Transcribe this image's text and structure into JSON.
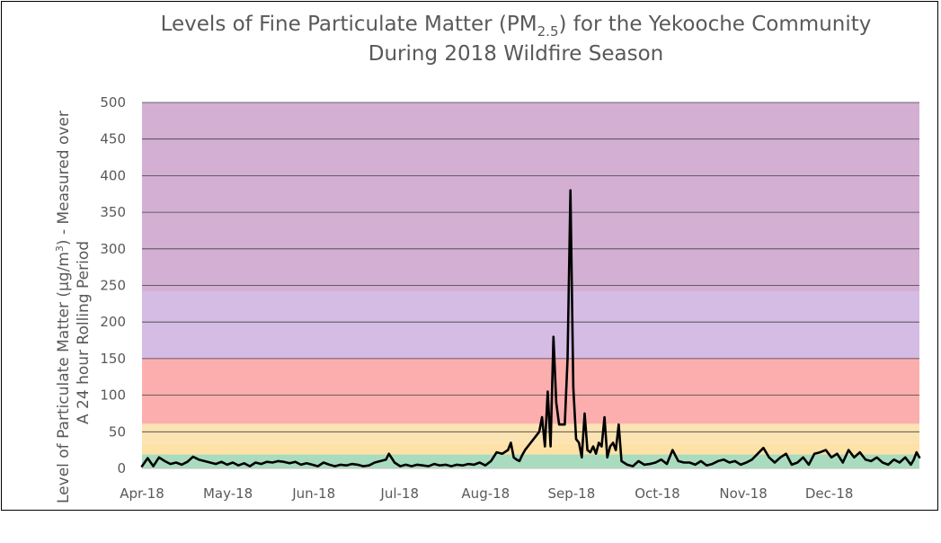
{
  "chart_data": {
    "type": "line",
    "title": {
      "line1_pre": "Levels of Fine Particulate Matter (PM",
      "line1_sub": "2.5",
      "line1_post": ") for the Yekooche Community",
      "line2": "During 2018 Wildfire Season"
    },
    "ylabel": {
      "line1_pre": "Level of Particulate Matter (µg/m",
      "line1_sup": "3",
      "line1_post": ") - Measured over",
      "line2": "A 24 hour Rolling Period"
    },
    "xlabel": "",
    "ylim": [
      0,
      500
    ],
    "yticks": [
      "0",
      "50",
      "100",
      "150",
      "200",
      "250",
      "300",
      "350",
      "400",
      "450",
      "500"
    ],
    "x_tick_labels": [
      "Apr-18",
      "May-18",
      "Jun-18",
      "Jul-18",
      "Aug-18",
      "Sep-18",
      "Oct-18",
      "Nov-18",
      "Dec-18"
    ],
    "x_range": [
      "2018-04-01",
      "2018-12-31"
    ],
    "gridlines": true,
    "legend": "none",
    "bands": [
      {
        "from": 0,
        "to": 19,
        "color": "#a9dcbf"
      },
      {
        "from": 19,
        "to": 34,
        "color": "#fde1a6"
      },
      {
        "from": 34,
        "to": 61,
        "color": "#fce3b3"
      },
      {
        "from": 61,
        "to": 150,
        "color": "#fcaeae"
      },
      {
        "from": 150,
        "to": 242,
        "color": "#d5bce4"
      },
      {
        "from": 242,
        "to": 500,
        "color": "#d2afd3"
      }
    ],
    "series": [
      {
        "color": "#000000",
        "points": [
          [
            "2018-04-01",
            3
          ],
          [
            "2018-04-03",
            14
          ],
          [
            "2018-04-05",
            3
          ],
          [
            "2018-04-07",
            15
          ],
          [
            "2018-04-09",
            10
          ],
          [
            "2018-04-11",
            6
          ],
          [
            "2018-04-13",
            8
          ],
          [
            "2018-04-15",
            5
          ],
          [
            "2018-04-17",
            9
          ],
          [
            "2018-04-19",
            16
          ],
          [
            "2018-04-21",
            12
          ],
          [
            "2018-04-23",
            10
          ],
          [
            "2018-04-25",
            8
          ],
          [
            "2018-04-27",
            6
          ],
          [
            "2018-04-29",
            9
          ],
          [
            "2018-05-01",
            5
          ],
          [
            "2018-05-03",
            8
          ],
          [
            "2018-05-05",
            4
          ],
          [
            "2018-05-07",
            7
          ],
          [
            "2018-05-09",
            3
          ],
          [
            "2018-05-11",
            8
          ],
          [
            "2018-05-13",
            6
          ],
          [
            "2018-05-15",
            9
          ],
          [
            "2018-05-17",
            8
          ],
          [
            "2018-05-19",
            10
          ],
          [
            "2018-05-21",
            9
          ],
          [
            "2018-05-23",
            7
          ],
          [
            "2018-05-25",
            9
          ],
          [
            "2018-05-27",
            5
          ],
          [
            "2018-05-29",
            7
          ],
          [
            "2018-05-31",
            5
          ],
          [
            "2018-06-02",
            3
          ],
          [
            "2018-06-04",
            8
          ],
          [
            "2018-06-06",
            5
          ],
          [
            "2018-06-08",
            3
          ],
          [
            "2018-06-10",
            5
          ],
          [
            "2018-06-12",
            4
          ],
          [
            "2018-06-14",
            6
          ],
          [
            "2018-06-16",
            5
          ],
          [
            "2018-06-18",
            3
          ],
          [
            "2018-06-20",
            4
          ],
          [
            "2018-06-22",
            8
          ],
          [
            "2018-06-24",
            10
          ],
          [
            "2018-06-26",
            12
          ],
          [
            "2018-06-27",
            20
          ],
          [
            "2018-06-29",
            8
          ],
          [
            "2018-07-01",
            3
          ],
          [
            "2018-07-03",
            5
          ],
          [
            "2018-07-05",
            3
          ],
          [
            "2018-07-07",
            5
          ],
          [
            "2018-07-09",
            4
          ],
          [
            "2018-07-11",
            3
          ],
          [
            "2018-07-13",
            6
          ],
          [
            "2018-07-15",
            4
          ],
          [
            "2018-07-17",
            5
          ],
          [
            "2018-07-19",
            3
          ],
          [
            "2018-07-21",
            5
          ],
          [
            "2018-07-23",
            4
          ],
          [
            "2018-07-25",
            6
          ],
          [
            "2018-07-27",
            5
          ],
          [
            "2018-07-29",
            8
          ],
          [
            "2018-07-31",
            4
          ],
          [
            "2018-08-02",
            10
          ],
          [
            "2018-08-04",
            22
          ],
          [
            "2018-08-06",
            20
          ],
          [
            "2018-08-08",
            25
          ],
          [
            "2018-08-09",
            35
          ],
          [
            "2018-08-10",
            15
          ],
          [
            "2018-08-11",
            12
          ],
          [
            "2018-08-12",
            10
          ],
          [
            "2018-08-13",
            18
          ],
          [
            "2018-08-14",
            25
          ],
          [
            "2018-08-16",
            35
          ],
          [
            "2018-08-18",
            45
          ],
          [
            "2018-08-19",
            50
          ],
          [
            "2018-08-20",
            70
          ],
          [
            "2018-08-21",
            30
          ],
          [
            "2018-08-22",
            105
          ],
          [
            "2018-08-23",
            30
          ],
          [
            "2018-08-24",
            180
          ],
          [
            "2018-08-25",
            90
          ],
          [
            "2018-08-26",
            60
          ],
          [
            "2018-08-27",
            60
          ],
          [
            "2018-08-28",
            60
          ],
          [
            "2018-08-29",
            150
          ],
          [
            "2018-08-30",
            380
          ],
          [
            "2018-08-31",
            110
          ],
          [
            "2018-09-01",
            40
          ],
          [
            "2018-09-02",
            35
          ],
          [
            "2018-09-03",
            15
          ],
          [
            "2018-09-04",
            75
          ],
          [
            "2018-09-05",
            25
          ],
          [
            "2018-09-06",
            22
          ],
          [
            "2018-09-07",
            30
          ],
          [
            "2018-09-08",
            20
          ],
          [
            "2018-09-09",
            35
          ],
          [
            "2018-09-10",
            30
          ],
          [
            "2018-09-11",
            70
          ],
          [
            "2018-09-12",
            15
          ],
          [
            "2018-09-13",
            30
          ],
          [
            "2018-09-14",
            35
          ],
          [
            "2018-09-15",
            25
          ],
          [
            "2018-09-16",
            60
          ],
          [
            "2018-09-17",
            10
          ],
          [
            "2018-09-19",
            5
          ],
          [
            "2018-09-21",
            3
          ],
          [
            "2018-09-23",
            10
          ],
          [
            "2018-09-25",
            5
          ],
          [
            "2018-09-27",
            6
          ],
          [
            "2018-09-29",
            8
          ],
          [
            "2018-10-01",
            12
          ],
          [
            "2018-10-03",
            6
          ],
          [
            "2018-10-05",
            25
          ],
          [
            "2018-10-07",
            10
          ],
          [
            "2018-10-09",
            8
          ],
          [
            "2018-10-11",
            8
          ],
          [
            "2018-10-13",
            5
          ],
          [
            "2018-10-15",
            10
          ],
          [
            "2018-10-17",
            4
          ],
          [
            "2018-10-19",
            6
          ],
          [
            "2018-10-21",
            10
          ],
          [
            "2018-10-23",
            12
          ],
          [
            "2018-10-25",
            8
          ],
          [
            "2018-10-27",
            10
          ],
          [
            "2018-10-29",
            5
          ],
          [
            "2018-10-31",
            8
          ],
          [
            "2018-11-02",
            12
          ],
          [
            "2018-11-04",
            20
          ],
          [
            "2018-11-06",
            28
          ],
          [
            "2018-11-08",
            15
          ],
          [
            "2018-11-10",
            8
          ],
          [
            "2018-11-12",
            15
          ],
          [
            "2018-11-14",
            20
          ],
          [
            "2018-11-16",
            5
          ],
          [
            "2018-11-18",
            8
          ],
          [
            "2018-11-20",
            15
          ],
          [
            "2018-11-22",
            5
          ],
          [
            "2018-11-24",
            20
          ],
          [
            "2018-11-26",
            22
          ],
          [
            "2018-11-28",
            25
          ],
          [
            "2018-11-30",
            15
          ],
          [
            "2018-12-02",
            20
          ],
          [
            "2018-12-04",
            8
          ],
          [
            "2018-12-06",
            25
          ],
          [
            "2018-12-08",
            15
          ],
          [
            "2018-12-10",
            22
          ],
          [
            "2018-12-12",
            12
          ],
          [
            "2018-12-14",
            10
          ],
          [
            "2018-12-16",
            15
          ],
          [
            "2018-12-18",
            8
          ],
          [
            "2018-12-20",
            5
          ],
          [
            "2018-12-22",
            12
          ],
          [
            "2018-12-24",
            8
          ],
          [
            "2018-12-26",
            15
          ],
          [
            "2018-12-28",
            5
          ],
          [
            "2018-12-29",
            12
          ],
          [
            "2018-12-30",
            22
          ],
          [
            "2018-12-31",
            15
          ]
        ]
      }
    ]
  }
}
